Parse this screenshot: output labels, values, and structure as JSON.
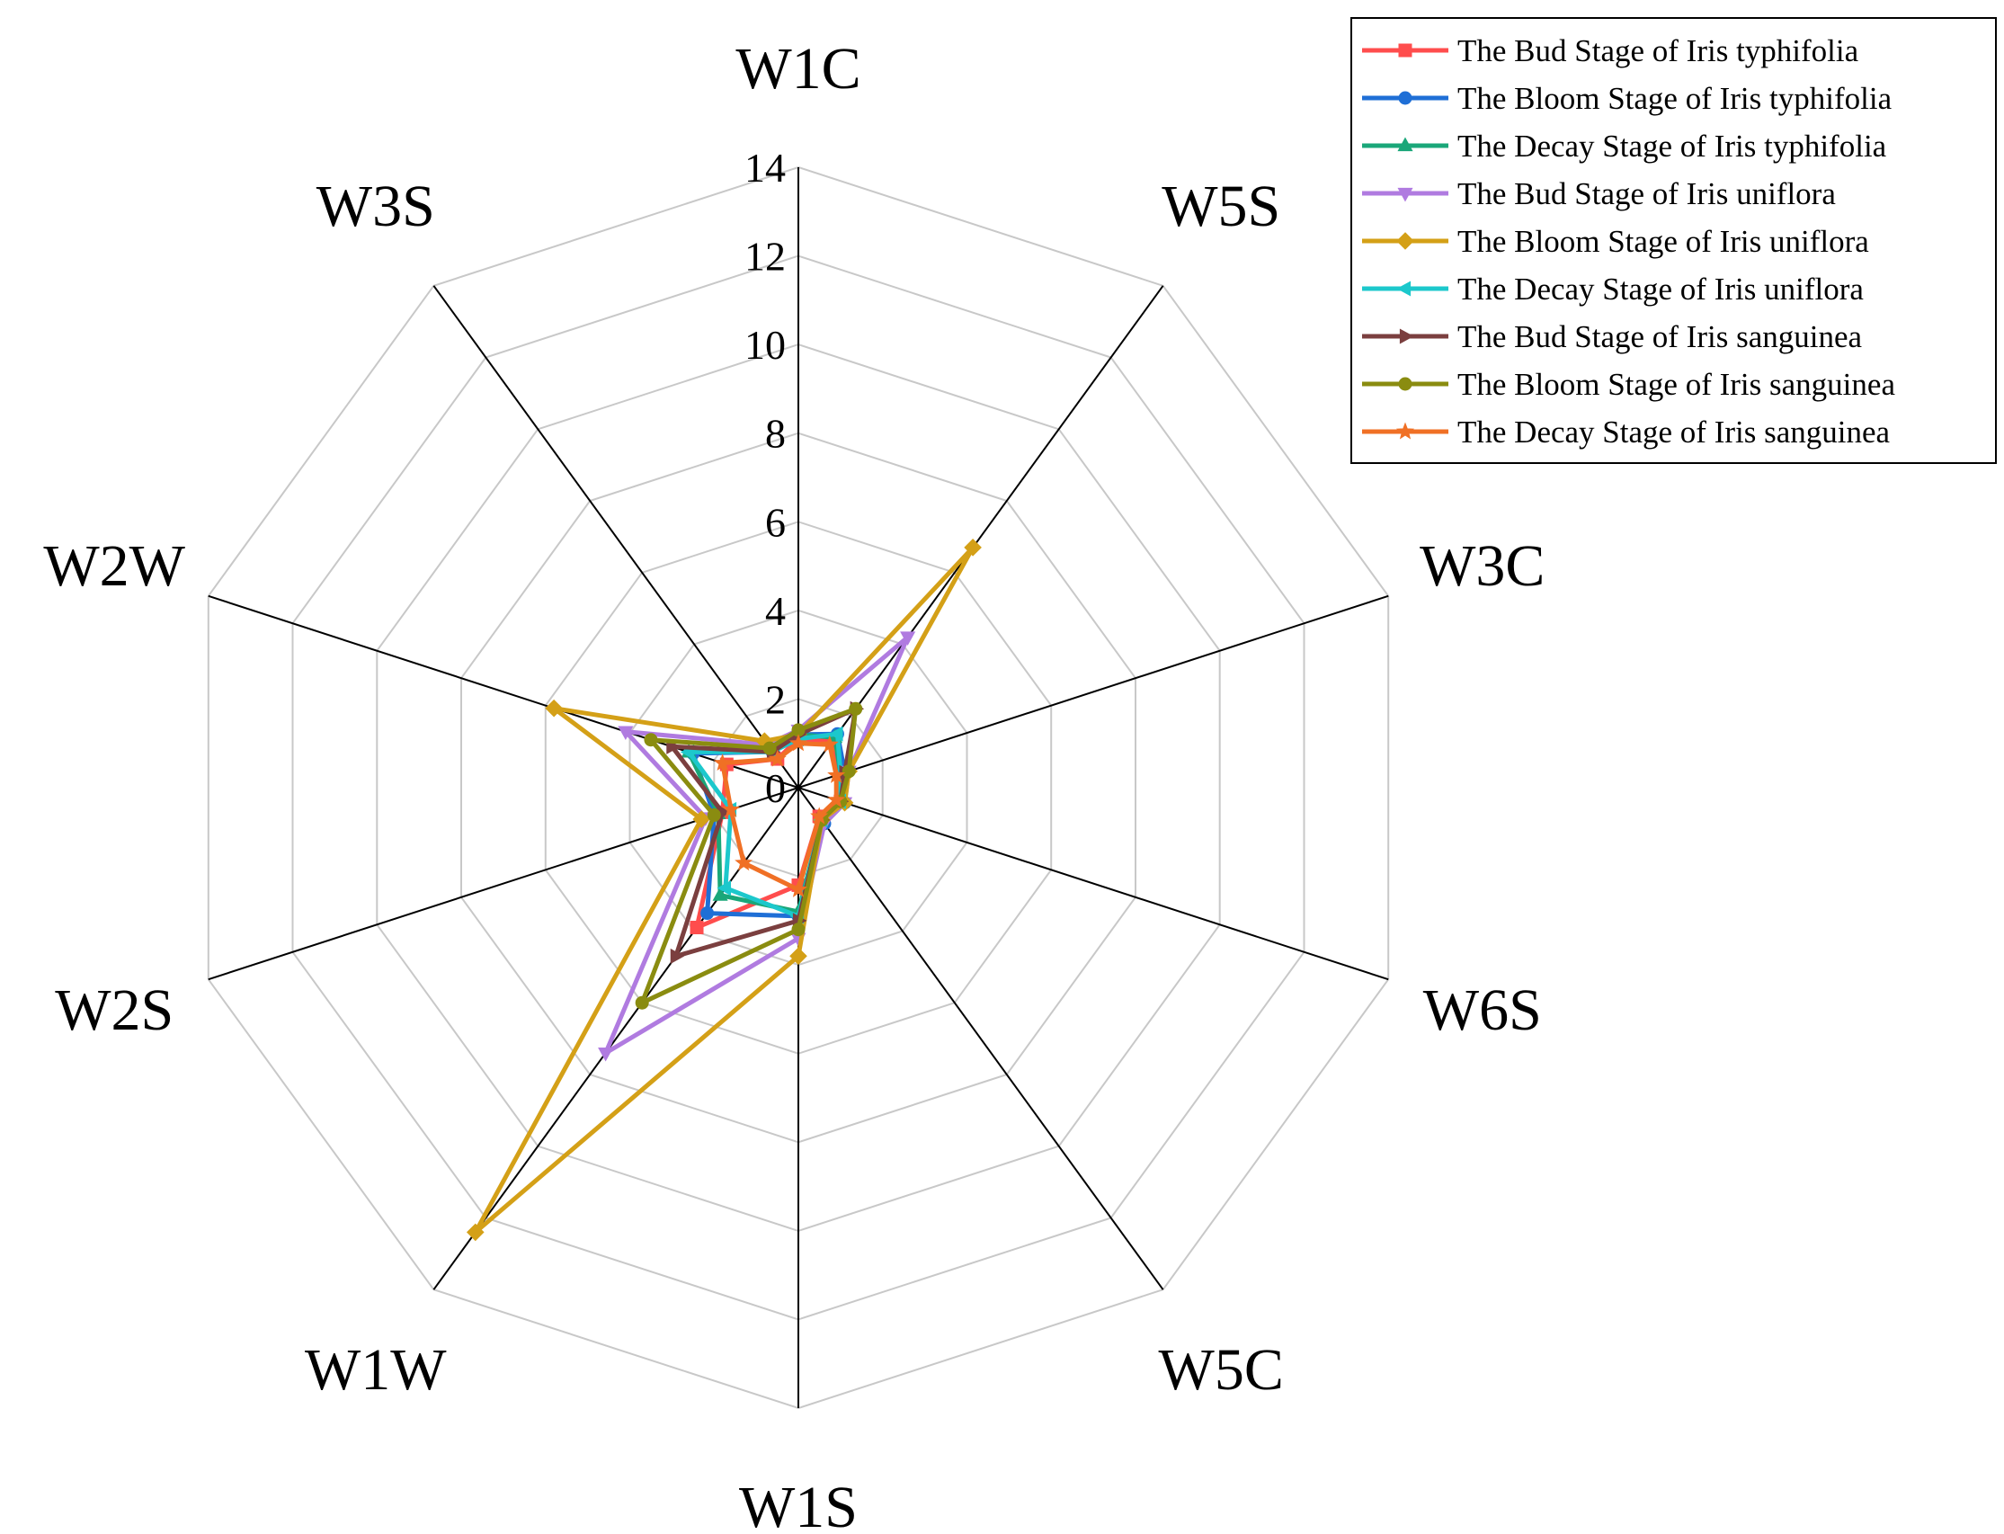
{
  "chart_data": {
    "type": "radar",
    "title": "",
    "axes": [
      "W1C",
      "W5S",
      "W3C",
      "W6S",
      "W5C",
      "W1S",
      "W1W",
      "W2S",
      "W2W",
      "W3S"
    ],
    "rlim": [
      0,
      14
    ],
    "ticks": [
      0,
      2,
      4,
      6,
      8,
      10,
      12,
      14
    ],
    "tick_labels": [
      "0",
      "2",
      "4",
      "6",
      "8",
      "10",
      "12",
      "14"
    ],
    "grid": true,
    "legend_position": "top-right",
    "series": [
      {
        "name": "The Bud Stage of Iris typhifolia",
        "color": "#ff4d4d",
        "marker": "square",
        "values": [
          1.1,
          1.3,
          1.0,
          1.0,
          0.8,
          2.2,
          3.9,
          1.8,
          1.7,
          0.8
        ]
      },
      {
        "name": "The Bloom Stage of Iris typhifolia",
        "color": "#1f6fd6",
        "marker": "circle",
        "values": [
          1.2,
          1.5,
          1.1,
          1.1,
          1.0,
          2.9,
          3.5,
          2.0,
          2.5,
          1.0
        ]
      },
      {
        "name": "The Decay Stage of Iris typhifolia",
        "color": "#1aa779",
        "marker": "triangle-up",
        "values": [
          1.2,
          1.4,
          1.0,
          1.0,
          0.9,
          2.8,
          3.0,
          1.9,
          2.6,
          1.1
        ]
      },
      {
        "name": "The Bud Stage of Iris uniflora",
        "color": "#b07be0",
        "marker": "triangle-down",
        "values": [
          1.3,
          4.2,
          1.2,
          1.1,
          1.0,
          3.4,
          7.4,
          2.2,
          4.1,
          1.2
        ]
      },
      {
        "name": "The Bloom Stage of Iris uniflora",
        "color": "#d4a017",
        "marker": "diamond",
        "values": [
          1.2,
          6.7,
          1.2,
          1.1,
          0.9,
          3.8,
          12.4,
          2.3,
          5.8,
          1.3
        ]
      },
      {
        "name": "The Decay Stage of Iris uniflora",
        "color": "#1cc8cc",
        "marker": "triangle-left",
        "values": [
          1.1,
          1.5,
          1.0,
          1.0,
          0.9,
          2.9,
          2.8,
          1.6,
          2.6,
          1.0
        ]
      },
      {
        "name": "The Bud Stage of Iris sanguinea",
        "color": "#7b3f3f",
        "marker": "triangle-right",
        "values": [
          1.2,
          2.2,
          1.1,
          1.0,
          0.9,
          3.0,
          4.7,
          1.8,
          3.0,
          1.0
        ]
      },
      {
        "name": "The Bloom Stage of Iris sanguinea",
        "color": "#8a8c10",
        "marker": "circle",
        "values": [
          1.3,
          2.2,
          1.2,
          1.0,
          0.9,
          3.2,
          6.0,
          2.0,
          3.5,
          1.1
        ]
      },
      {
        "name": "The Decay Stage of Iris sanguinea",
        "color": "#f07025",
        "marker": "star",
        "values": [
          1.0,
          1.2,
          0.9,
          0.9,
          0.8,
          2.3,
          2.1,
          1.6,
          1.8,
          0.8
        ]
      }
    ]
  }
}
